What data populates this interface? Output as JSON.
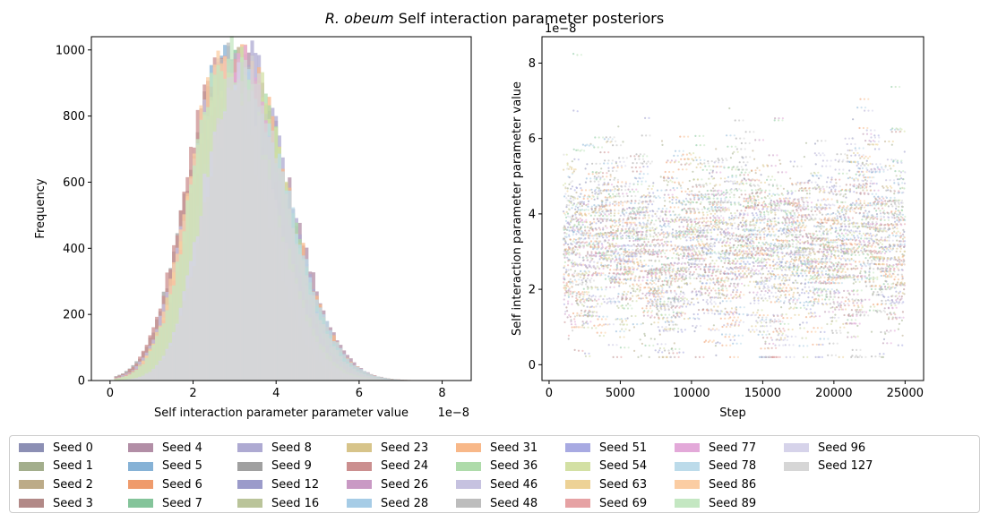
{
  "figure": {
    "title_italic": "R. obeum",
    "title_rest": " Self interaction parameter posteriors"
  },
  "chart_data": [
    {
      "type": "histogram",
      "xlabel": "Self interaction parameter parameter value",
      "ylabel": "Frequency",
      "x_offset_label": "1e−8",
      "xlim": [
        -0.45,
        8.7
      ],
      "ylim": [
        0,
        1040
      ],
      "xticks": [
        0,
        2,
        4,
        6,
        8
      ],
      "yticks": [
        0,
        200,
        400,
        600,
        800,
        1000
      ],
      "approx_distribution": {
        "mode_min": 2.6,
        "mode_max": 3.3,
        "peak_min": 880,
        "peak_max": 990,
        "sd": 0.95,
        "support": [
          0.1,
          8.3
        ]
      },
      "grid": false
    },
    {
      "type": "scatter",
      "xlabel": "Step",
      "ylabel": "Self interaction parameter parameter value",
      "y_offset_label": "1e−8",
      "xlim": [
        -500,
        26300
      ],
      "ylim": [
        -0.42,
        8.7
      ],
      "xticks": [
        0,
        5000,
        10000,
        15000,
        20000,
        25000
      ],
      "yticks": [
        0,
        2,
        4,
        6,
        8
      ],
      "step_range": [
        1000,
        25000
      ],
      "approx_distribution": {
        "median": 3.0,
        "typical_range": [
          1.3,
          5.5
        ],
        "extremes": [
          0.2,
          8.3
        ]
      },
      "grid": false
    }
  ],
  "legend": {
    "placement": "bottom-center",
    "items": [
      {
        "label": "Seed 0",
        "color": "#8c8fb4"
      },
      {
        "label": "Seed 1",
        "color": "#a3ae8c"
      },
      {
        "label": "Seed 2",
        "color": "#bcab88"
      },
      {
        "label": "Seed 3",
        "color": "#b28987"
      },
      {
        "label": "Seed 4",
        "color": "#b28ea6"
      },
      {
        "label": "Seed 5",
        "color": "#86b2d6"
      },
      {
        "label": "Seed 6",
        "color": "#ef9b6c"
      },
      {
        "label": "Seed 7",
        "color": "#84c49a"
      },
      {
        "label": "Seed 8",
        "color": "#aeaad2"
      },
      {
        "label": "Seed 9",
        "color": "#a0a0a0"
      },
      {
        "label": "Seed 12",
        "color": "#9b9bca"
      },
      {
        "label": "Seed 16",
        "color": "#bac49a"
      },
      {
        "label": "Seed 23",
        "color": "#d7c48a"
      },
      {
        "label": "Seed 24",
        "color": "#cb8f8f"
      },
      {
        "label": "Seed 26",
        "color": "#c999c4"
      },
      {
        "label": "Seed 28",
        "color": "#a6cce6"
      },
      {
        "label": "Seed 31",
        "color": "#f8b889"
      },
      {
        "label": "Seed 36",
        "color": "#aedbaa"
      },
      {
        "label": "Seed 46",
        "color": "#c6c2e0"
      },
      {
        "label": "Seed 48",
        "color": "#bdbdbd"
      },
      {
        "label": "Seed 51",
        "color": "#a8aae2"
      },
      {
        "label": "Seed 54",
        "color": "#d3e0a4"
      },
      {
        "label": "Seed 63",
        "color": "#edd296"
      },
      {
        "label": "Seed 69",
        "color": "#e6a2a4"
      },
      {
        "label": "Seed 77",
        "color": "#e3a9d9"
      },
      {
        "label": "Seed 78",
        "color": "#bcdbea"
      },
      {
        "label": "Seed 86",
        "color": "#fbcda3"
      },
      {
        "label": "Seed 89",
        "color": "#c4e7c2"
      },
      {
        "label": "Seed 96",
        "color": "#d6d3ea"
      },
      {
        "label": "Seed 127",
        "color": "#d6d6d6"
      }
    ]
  }
}
